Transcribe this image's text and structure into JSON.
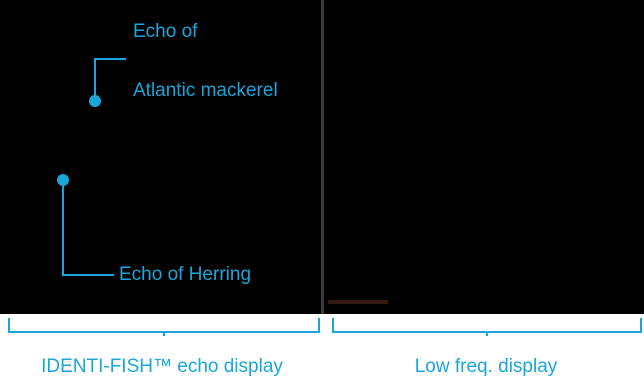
{
  "callouts": {
    "mackerel_line1": "Echo of",
    "mackerel_line2": "Atlantic mackerel",
    "herring": "Echo of Herring"
  },
  "captions": {
    "left": "IDENTI-FISH™ echo display",
    "right": "Low freq. display"
  },
  "colors": {
    "accent": "#1aa6d8",
    "background": "#000000",
    "divider": "#3a3a3a"
  }
}
